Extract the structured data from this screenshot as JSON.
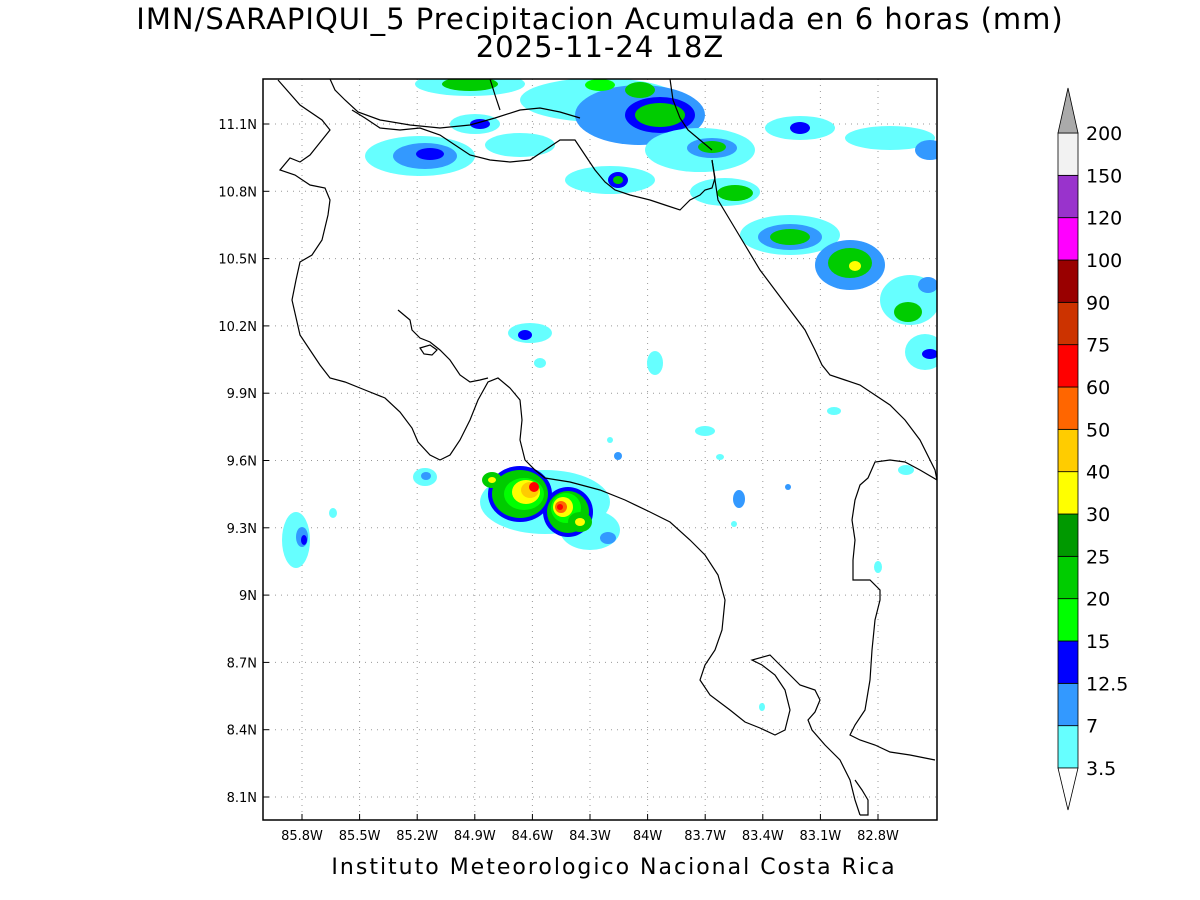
{
  "header": {
    "title_line1": "IMN/SARAPIQUI_5 Precipitacion Acumulada en 6 horas (mm)",
    "title_line2": "2025-11-24 18Z"
  },
  "footer": {
    "credit": "Instituto Meteorologico Nacional Costa Rica"
  },
  "axes": {
    "x_ticks": [
      "85.8W",
      "85.5W",
      "85.2W",
      "84.9W",
      "84.6W",
      "84.3W",
      "84W",
      "83.7W",
      "83.4W",
      "83.1W",
      "82.8W"
    ],
    "y_ticks": [
      "11.1N",
      "10.8N",
      "10.5N",
      "10.2N",
      "9.9N",
      "9.6N",
      "9.3N",
      "9N",
      "8.7N",
      "8.4N",
      "8.1N"
    ]
  },
  "colorbar": {
    "levels": [
      "3.5",
      "7",
      "12.5",
      "15",
      "20",
      "25",
      "30",
      "40",
      "50",
      "60",
      "75",
      "90",
      "100",
      "120",
      "150",
      "200"
    ],
    "colors": [
      "#66ffff",
      "#3399ff",
      "#0000ff",
      "#00ff00",
      "#00cc00",
      "#009900",
      "#ffff00",
      "#ffcc00",
      "#ff6600",
      "#ff0000",
      "#cc3300",
      "#990000",
      "#ff00ff",
      "#9933cc",
      "#f2f2f2",
      "#aaaaaa"
    ]
  }
}
